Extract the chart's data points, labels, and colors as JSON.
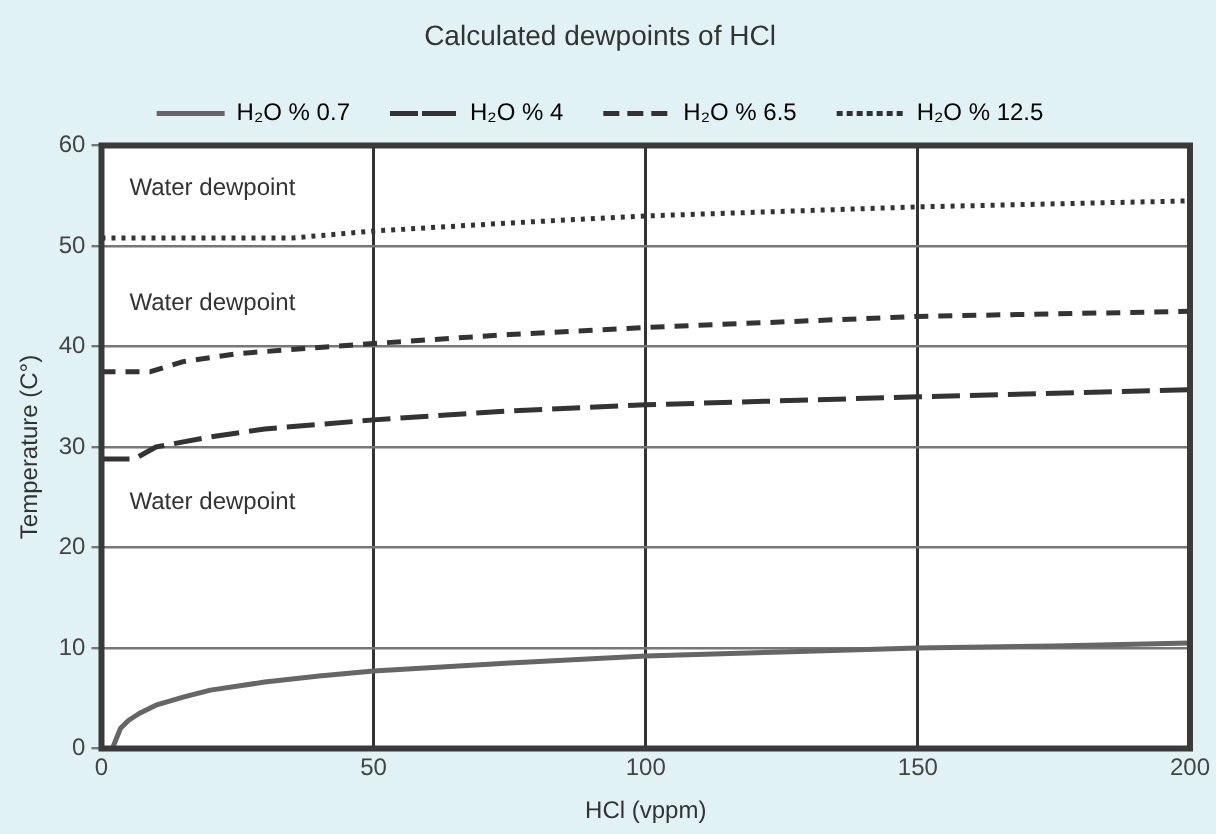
{
  "chart_data": {
    "type": "line",
    "title": "Calculated dewpoints of HCl",
    "xlabel": "HCl (vppm)",
    "ylabel": "Temperature (C°)",
    "xlim": [
      0,
      200
    ],
    "xticks": [
      0,
      50,
      100,
      150,
      200
    ],
    "ylim": [
      0,
      60
    ],
    "yticks": [
      0,
      10,
      20,
      30,
      40,
      50,
      60
    ],
    "grid": true,
    "legend": "top",
    "marker": "none",
    "annotations": [
      "Water dewpoint",
      "Water dewpoint",
      "Water dewpoint"
    ],
    "series": [
      {
        "name": "H₂O % 0.7",
        "color": "#666666",
        "line_style": "solid",
        "x": [
          2,
          3.5,
          5,
          7,
          10,
          15,
          20,
          30,
          40,
          50,
          75,
          100,
          125,
          150,
          175,
          200
        ],
        "values": [
          0,
          2,
          2.8,
          3.5,
          4.3,
          5.1,
          5.8,
          6.6,
          7.2,
          7.7,
          8.5,
          9.2,
          9.6,
          10,
          10.2,
          10.5
        ]
      },
      {
        "name": "H₂O % 4",
        "color": "#333333",
        "line_style": "long-dashed",
        "x": [
          0,
          6,
          10,
          20,
          30,
          50,
          75,
          100,
          150,
          200
        ],
        "values": [
          28.8,
          28.8,
          30,
          31,
          31.8,
          32.7,
          33.6,
          34.2,
          35,
          35.7
        ]
      },
      {
        "name": "H₂O % 6.5",
        "color": "#333333",
        "line_style": "dashed",
        "x": [
          0,
          9,
          15,
          25,
          50,
          75,
          100,
          150,
          200
        ],
        "values": [
          37.5,
          37.5,
          38.5,
          39.3,
          40.3,
          41.2,
          41.9,
          43,
          43.5
        ]
      },
      {
        "name": "H₂O % 12.5",
        "color": "#333333",
        "line_style": "dotted",
        "x": [
          0,
          35,
          50,
          75,
          100,
          150,
          200
        ],
        "values": [
          50.8,
          50.8,
          51.5,
          52.3,
          53,
          53.9,
          54.5
        ]
      }
    ]
  }
}
